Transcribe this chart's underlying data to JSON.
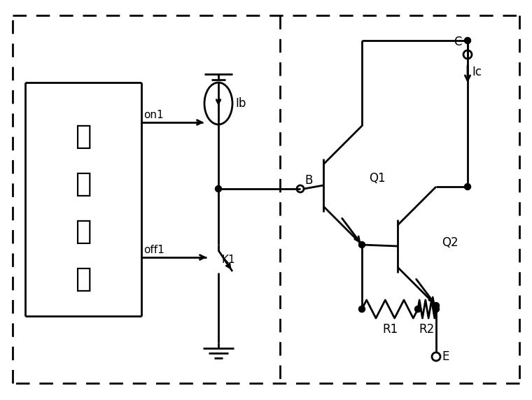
{
  "bg_color": "#ffffff",
  "line_color": "#000000",
  "lw": 2.0,
  "figsize": [
    7.6,
    5.72
  ],
  "dpi": 100,
  "labels": {
    "logic_chars": [
      "逻",
      "辑",
      "电",
      "路"
    ],
    "on1": "on1",
    "off1": "off1",
    "Ib": "Ib",
    "K1": "K1",
    "B": "B",
    "Q1": "Q1",
    "Q2": "Q2",
    "R1": "R1",
    "R2": "R2",
    "C": "C",
    "Ic": "Ic",
    "E": "E"
  }
}
